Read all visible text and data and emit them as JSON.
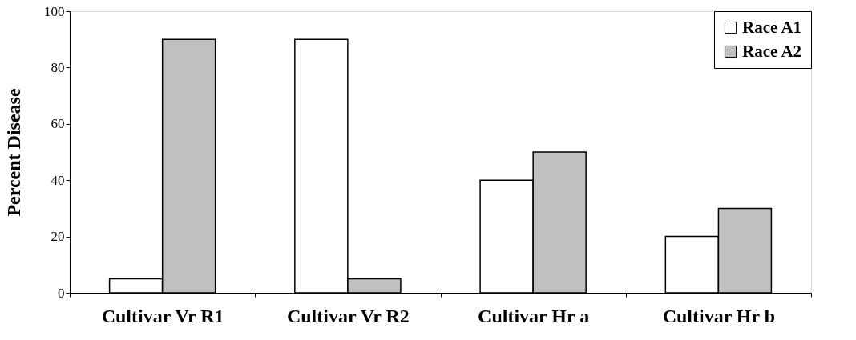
{
  "chart_data": {
    "type": "bar",
    "ylabel": "Percent Disease",
    "categories": [
      "Cultivar Vr R1",
      "Cultivar Vr R2",
      "Cultivar Hr a",
      "Cultivar Hr b"
    ],
    "series": [
      {
        "name": "Race A1",
        "color": "#ffffff",
        "values": [
          5,
          90,
          40,
          20
        ]
      },
      {
        "name": "Race A2",
        "color": "#c0c0c0",
        "values": [
          90,
          5,
          50,
          30
        ]
      }
    ],
    "ylim": [
      0,
      100
    ],
    "yticks": [
      0,
      20,
      40,
      60,
      80,
      100
    ],
    "grid": false,
    "legend": "top right"
  }
}
